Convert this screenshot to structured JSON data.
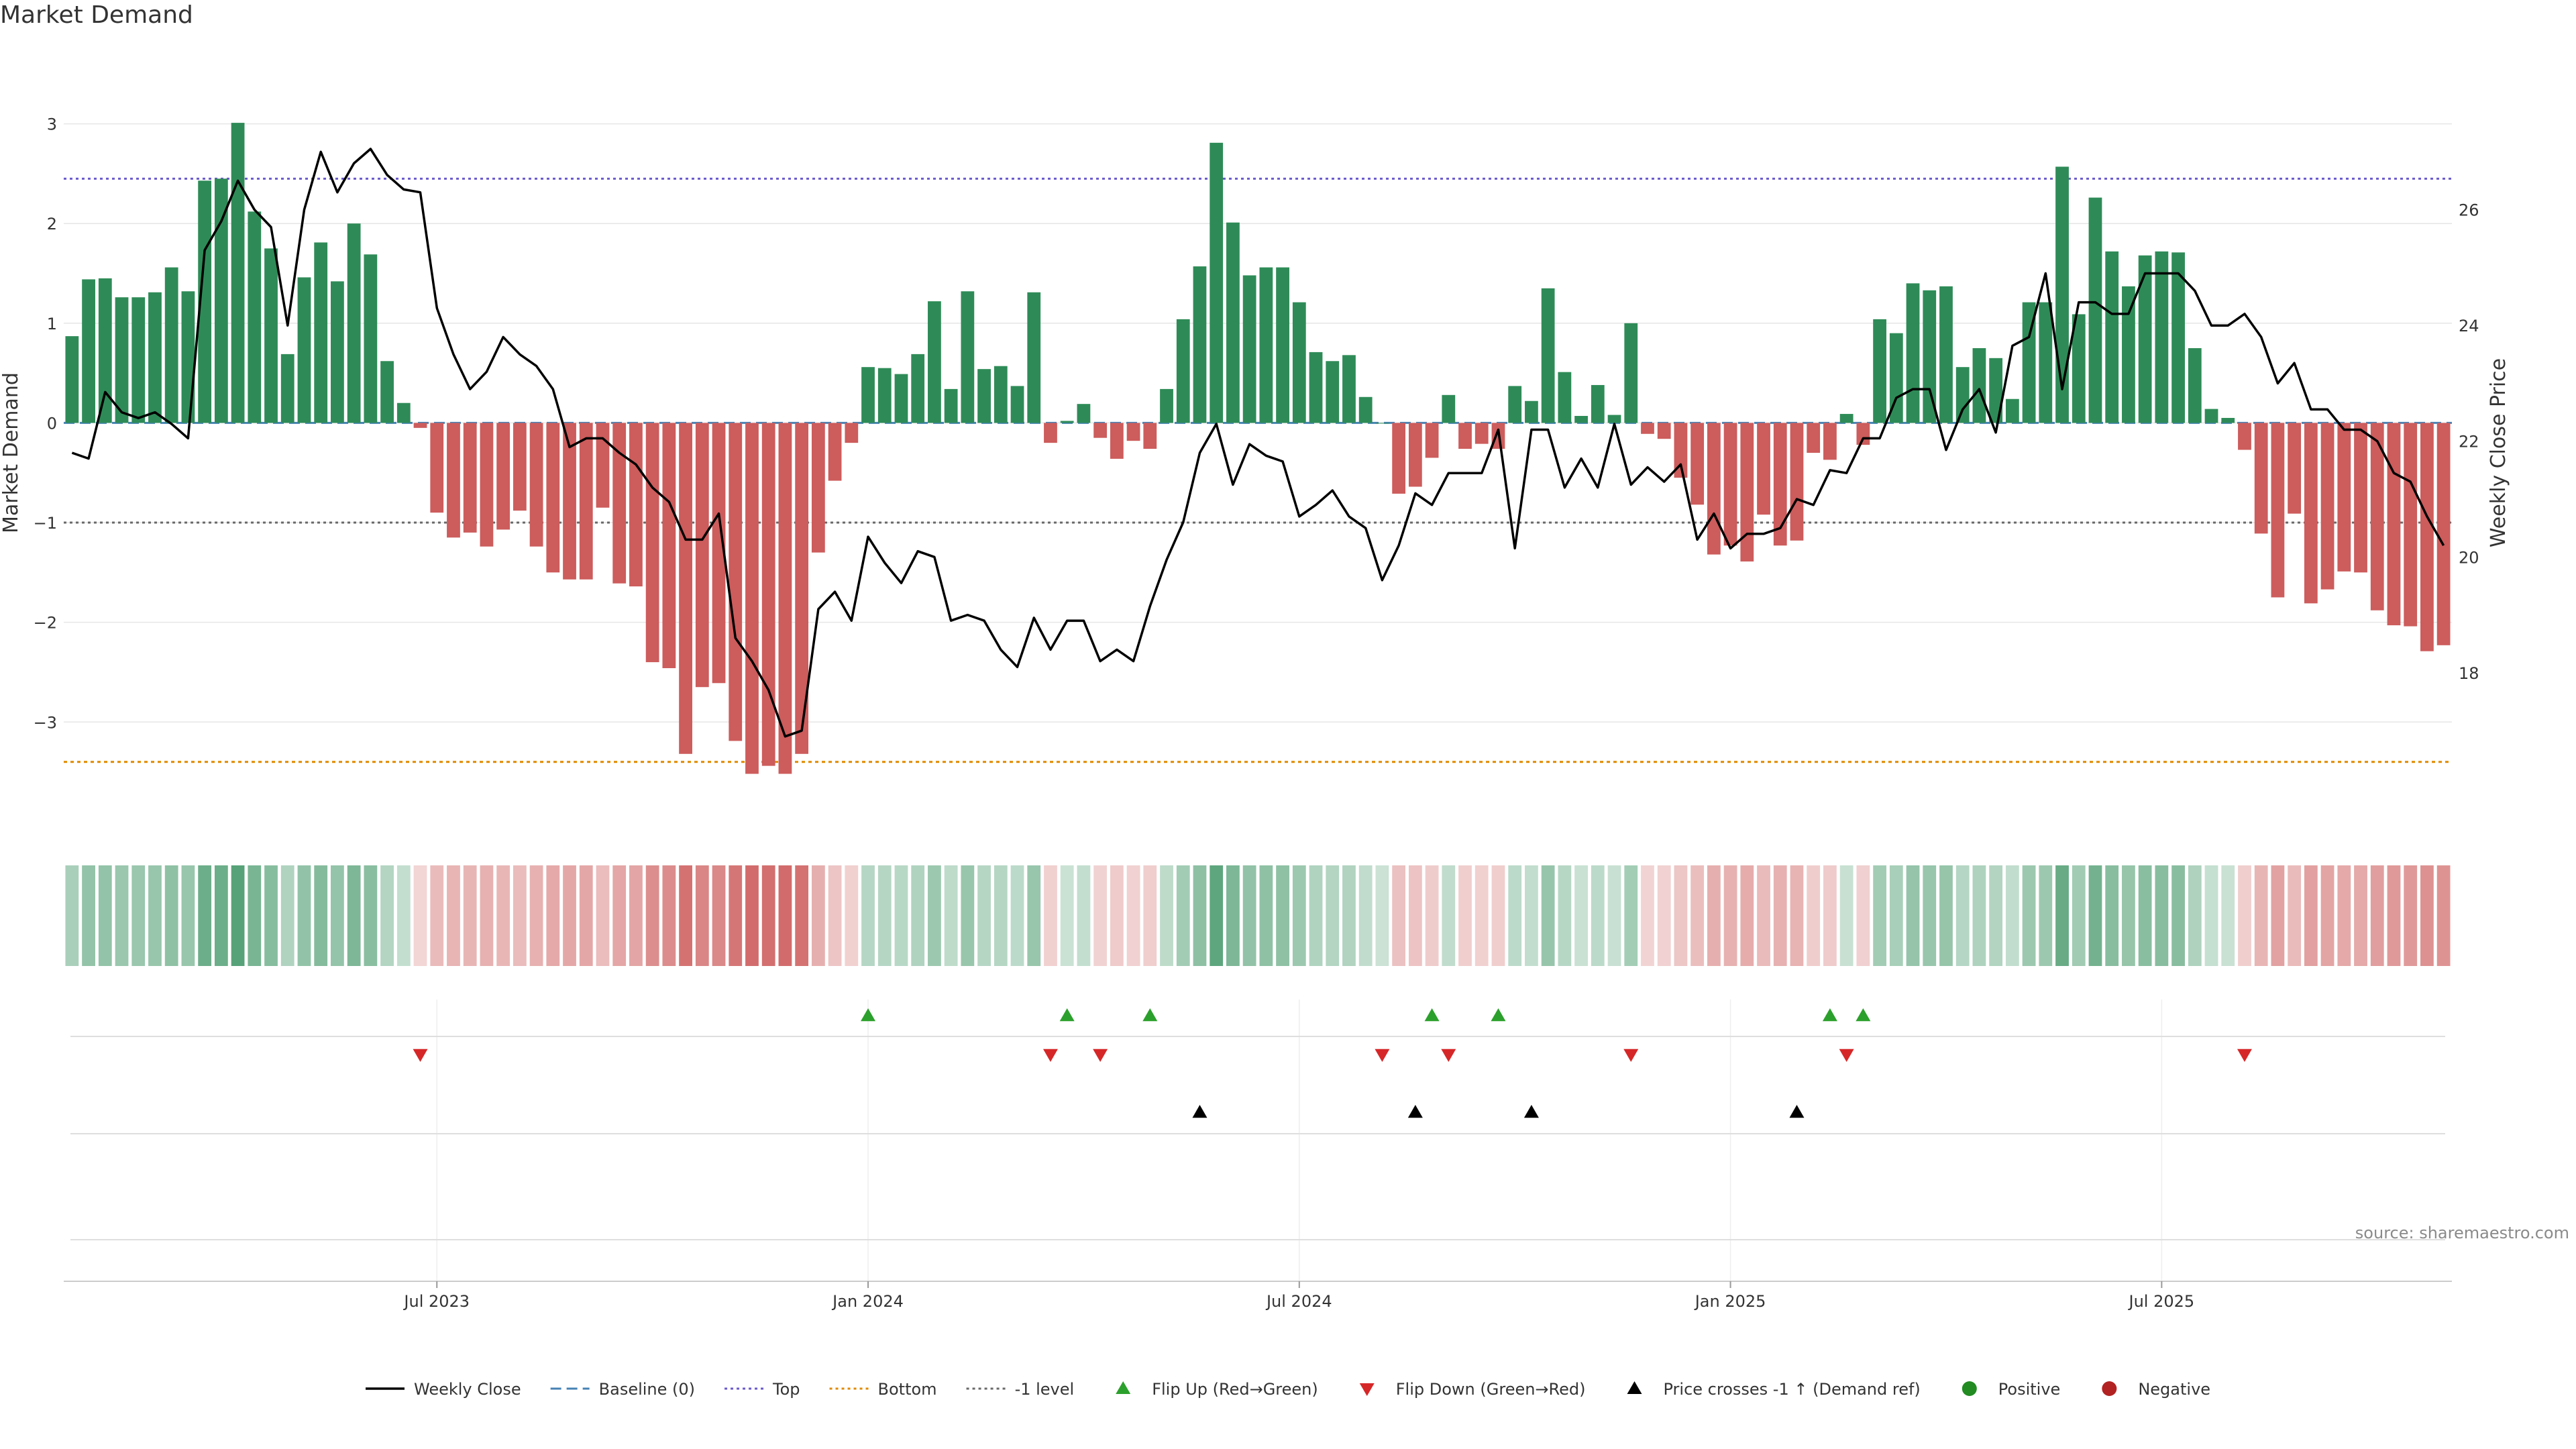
{
  "chart_data": {
    "type": "bar",
    "title": "Market Demand",
    "ylabel_left": "Market Demand",
    "ylabel_right": "Weekly Close Price",
    "source": "source: sharemaestro.com",
    "x_start": "2023-01-09",
    "period": "weekly",
    "ylim_left": [
      -3.9,
      3.3
    ],
    "ylim_right": [
      15.6,
      28.0
    ],
    "left_ticks": [
      {
        "v": 3,
        "label": "3"
      },
      {
        "v": 2,
        "label": "2"
      },
      {
        "v": 1,
        "label": "1"
      },
      {
        "v": 0,
        "label": "0"
      },
      {
        "v": -1,
        "label": "−1"
      },
      {
        "v": -2,
        "label": "−2"
      },
      {
        "v": -3,
        "label": "−3"
      }
    ],
    "right_ticks": [
      {
        "v": 26,
        "label": "26"
      },
      {
        "v": 24,
        "label": "24"
      },
      {
        "v": 22,
        "label": "22"
      },
      {
        "v": 20,
        "label": "20"
      },
      {
        "v": 18,
        "label": "18"
      }
    ],
    "x_ticks": [
      {
        "index": 22,
        "label": "Jul 2023"
      },
      {
        "index": 48,
        "label": "Jan 2024"
      },
      {
        "index": 74,
        "label": "Jul 2024"
      },
      {
        "index": 100,
        "label": "Jan 2025"
      },
      {
        "index": 126,
        "label": "Jul 2025"
      }
    ],
    "levels": {
      "top": 2.45,
      "bottom": -3.4,
      "minus_one": -1.0,
      "baseline": 0
    },
    "colors": {
      "positive": "#2e8b57",
      "negative": "#cd5c5c",
      "price": "#000000",
      "top": "#6a5acd",
      "bottom": "#e08a00",
      "minus_one": "#696969",
      "baseline": "#4682b4",
      "flip_up": "#2ca02c",
      "flip_down": "#d62728",
      "cross": "#000000"
    },
    "demand": [
      0.87,
      1.44,
      1.45,
      1.26,
      1.26,
      1.31,
      1.56,
      1.32,
      2.43,
      2.45,
      3.01,
      2.12,
      1.75,
      0.69,
      1.46,
      1.81,
      1.42,
      2.0,
      1.69,
      0.62,
      0.2,
      -0.05,
      -0.9,
      -1.15,
      -1.1,
      -1.24,
      -1.07,
      -0.88,
      -1.24,
      -1.5,
      -1.57,
      -1.57,
      -0.85,
      -1.61,
      -1.64,
      -2.4,
      -2.46,
      -3.32,
      -2.65,
      -2.61,
      -3.19,
      -3.52,
      -3.44,
      -3.52,
      -3.32,
      -1.3,
      -0.58,
      -0.2,
      0.56,
      0.55,
      0.49,
      0.69,
      1.22,
      0.34,
      1.32,
      0.54,
      0.57,
      0.37,
      1.31,
      -0.2,
      0.02,
      0.19,
      -0.15,
      -0.36,
      -0.18,
      -0.26,
      0.34,
      1.04,
      1.57,
      2.81,
      2.01,
      1.48,
      1.56,
      1.56,
      1.21,
      0.71,
      0.62,
      0.68,
      0.26,
      0.0,
      -0.71,
      -0.64,
      -0.35,
      0.28,
      -0.26,
      -0.21,
      -0.26,
      0.37,
      0.22,
      1.35,
      0.51,
      0.07,
      0.38,
      0.08,
      1.0,
      -0.11,
      -0.16,
      -0.55,
      -0.82,
      -1.32,
      -1.23,
      -1.39,
      -0.92,
      -1.23,
      -1.18,
      -0.3,
      -0.37,
      0.09,
      -0.22,
      1.04,
      0.9,
      1.4,
      1.33,
      1.37,
      0.56,
      0.75,
      0.65,
      0.24,
      1.21,
      1.21,
      2.57,
      1.09,
      2.26,
      1.72,
      1.37,
      1.68,
      1.72,
      1.71,
      0.75,
      0.14,
      0.05,
      -0.27,
      -1.11,
      -1.75,
      -0.91,
      -1.81,
      -1.67,
      -1.49,
      -1.5,
      -1.88,
      -2.03,
      -2.04,
      -2.29,
      -2.23
    ],
    "price": [
      21.8,
      21.7,
      22.85,
      22.5,
      22.4,
      22.5,
      22.3,
      22.05,
      25.3,
      25.8,
      26.5,
      26.0,
      25.7,
      24.0,
      26.0,
      27.0,
      26.3,
      26.8,
      27.05,
      26.6,
      26.35,
      26.3,
      24.3,
      23.5,
      22.9,
      23.2,
      23.8,
      23.5,
      23.3,
      22.9,
      21.9,
      22.05,
      22.05,
      21.8,
      21.6,
      21.2,
      20.95,
      20.3,
      20.3,
      20.75,
      18.6,
      18.2,
      17.7,
      16.9,
      17.0,
      19.1,
      19.4,
      18.9,
      20.35,
      19.9,
      19.55,
      20.1,
      20.0,
      18.9,
      19.0,
      18.9,
      18.4,
      18.1,
      18.95,
      18.4,
      18.9,
      18.9,
      18.2,
      18.4,
      18.2,
      19.15,
      19.95,
      20.6,
      21.8,
      22.3,
      21.25,
      21.95,
      21.75,
      21.65,
      20.7,
      20.9,
      21.15,
      20.7,
      20.5,
      19.6,
      20.2,
      21.1,
      20.9,
      21.45,
      21.45,
      21.45,
      22.2,
      20.15,
      22.2,
      22.2,
      21.2,
      21.7,
      21.2,
      22.3,
      21.25,
      21.55,
      21.3,
      21.6,
      20.3,
      20.75,
      20.15,
      20.4,
      20.4,
      20.5,
      21.0,
      20.9,
      21.5,
      21.45,
      22.05,
      22.05,
      22.75,
      22.9,
      22.9,
      21.85,
      22.55,
      22.9,
      22.15,
      23.65,
      23.8,
      24.9,
      22.9,
      24.4,
      24.4,
      24.2,
      24.2,
      24.9,
      24.9,
      24.9,
      24.6,
      24.0,
      24.0,
      24.2,
      23.8,
      23.0,
      23.35,
      22.55,
      22.55,
      22.2,
      22.2,
      22.0,
      21.45,
      21.3,
      20.7,
      20.2
    ],
    "markers": {
      "flip_up": [
        48,
        60,
        65,
        82,
        86,
        106,
        108
      ],
      "flip_down": [
        21,
        59,
        62,
        79,
        83,
        94,
        107,
        131
      ],
      "price_cross_up": [
        68,
        81,
        88,
        104
      ]
    },
    "legend": [
      {
        "key": "weekly_close",
        "label": "Weekly Close"
      },
      {
        "key": "baseline",
        "label": "Baseline (0)"
      },
      {
        "key": "top",
        "label": "Top"
      },
      {
        "key": "bottom",
        "label": "Bottom"
      },
      {
        "key": "minus_one",
        "label": "-1 level"
      },
      {
        "key": "flip_up",
        "label": "Flip Up (Red→Green)"
      },
      {
        "key": "flip_down",
        "label": "Flip Down (Green→Red)"
      },
      {
        "key": "price_cross",
        "label": "Price crosses -1 ↑ (Demand ref)"
      },
      {
        "key": "positive",
        "label": "Positive"
      },
      {
        "key": "negative",
        "label": "Negative"
      }
    ]
  }
}
